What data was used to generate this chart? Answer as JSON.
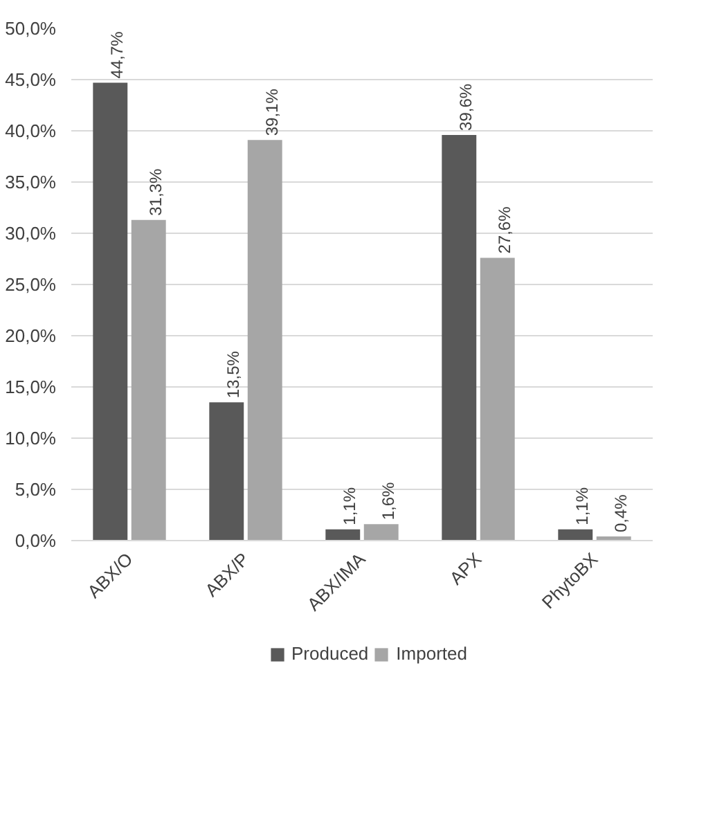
{
  "chart_data": {
    "type": "bar",
    "categories": [
      "ABX/O",
      "ABX/P",
      "ABX/IMA",
      "APX",
      "PhytoBX"
    ],
    "series": [
      {
        "name": "Produced",
        "color": "#595959",
        "values": [
          44.7,
          13.5,
          1.1,
          39.6,
          1.1
        ],
        "value_labels": [
          "44,7%",
          "13,5%",
          "1,1%",
          "39,6%",
          "1,1%"
        ]
      },
      {
        "name": "Imported",
        "color": "#a6a6a6",
        "values": [
          31.3,
          39.1,
          1.6,
          27.6,
          0.4
        ],
        "value_labels": [
          "31,3%",
          "39,1%",
          "1,6%",
          "27,6%",
          "0,4%"
        ]
      }
    ],
    "ylim": [
      0,
      50
    ],
    "yticks": [
      {
        "value": 0,
        "label": "0,0%"
      },
      {
        "value": 5,
        "label": "5,0%"
      },
      {
        "value": 10,
        "label": "10,0%"
      },
      {
        "value": 15,
        "label": "15,0%"
      },
      {
        "value": 20,
        "label": "20,0%"
      },
      {
        "value": 25,
        "label": "25,0%"
      },
      {
        "value": 30,
        "label": "30,0%"
      },
      {
        "value": 35,
        "label": "35,0%"
      },
      {
        "value": 40,
        "label": "40,0%"
      },
      {
        "value": 45,
        "label": "45,0%"
      },
      {
        "value": 50,
        "label": "50,0%"
      }
    ],
    "grid": "y",
    "legend": "bottom"
  }
}
